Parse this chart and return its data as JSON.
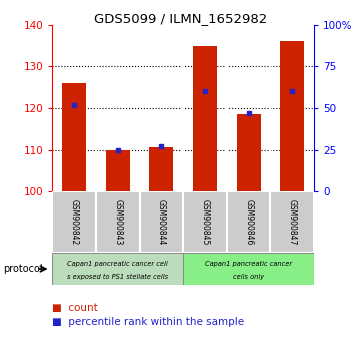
{
  "title": "GDS5099 / ILMN_1652982",
  "samples": [
    "GSM900842",
    "GSM900843",
    "GSM900844",
    "GSM900845",
    "GSM900846",
    "GSM900847"
  ],
  "counts": [
    126.0,
    110.0,
    110.5,
    135.0,
    118.5,
    136.0
  ],
  "percentiles": [
    52,
    25,
    27,
    60,
    47,
    60
  ],
  "ymin": 100,
  "ymax": 140,
  "yticks_left": [
    100,
    110,
    120,
    130,
    140
  ],
  "yticks_right": [
    0,
    25,
    50,
    75,
    100
  ],
  "ytick_right_labels": [
    "0",
    "25",
    "50",
    "75",
    "100%"
  ],
  "bar_color": "#cc2200",
  "dot_color": "#2222cc",
  "group1_label_line1": "Capan1 pancreatic cancer cell",
  "group1_label_line2": "s exposed to PS1 stellate cells",
  "group2_label_line1": "Capan1 pancreatic cancer",
  "group2_label_line2": "cells only",
  "group1_color": "#bbddbb",
  "group2_color": "#88ee88",
  "label_bg_color": "#cccccc",
  "bar_width": 0.55,
  "legend_count_label": "count",
  "legend_percentile_label": "percentile rank within the sample"
}
